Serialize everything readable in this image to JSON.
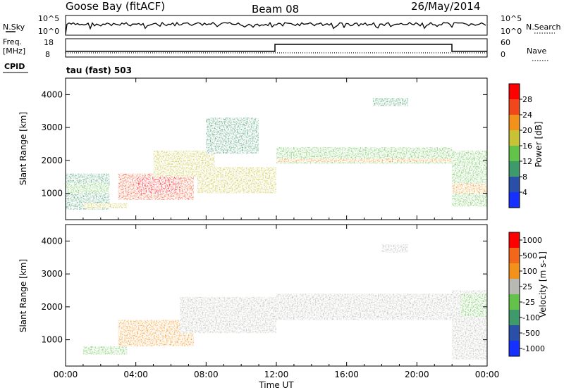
{
  "header": {
    "station": "Goose Bay (fitACF)",
    "beam": "Beam 08",
    "date": "26/May/2014"
  },
  "summary": {
    "nsky_label": "N.Sky",
    "nsky_ticks": [
      "10^5",
      "10^0"
    ],
    "nsearch_label": "N.Search",
    "nsearch_ticks": [
      "10^5",
      "10^0"
    ],
    "freq_label": "Freq.",
    "freq_unit": "[MHz]",
    "freq_ticks": [
      "18",
      "8"
    ],
    "nave_label": "Nave",
    "nave_ticks": [
      "60",
      "0"
    ],
    "cpid_label": "CPID",
    "cpid_value": "tau (fast) 503"
  },
  "colors": {
    "power": [
      "#1530ff",
      "#2a4fa8",
      "#3e9a6b",
      "#63c24a",
      "#c9c235",
      "#f2921a",
      "#f2471a",
      "#ff0000"
    ],
    "velocity": [
      "#1530ff",
      "#2a4fa8",
      "#3e9a6b",
      "#63c24a",
      "#b9b9b4",
      "#f2921a",
      "#f2671a",
      "#ff0000"
    ]
  },
  "chart_data": [
    {
      "type": "heatmap",
      "name": "power",
      "ylabel": "Slant Range [km]",
      "xlabel": "Time UT",
      "xlim": [
        0,
        24
      ],
      "ylim": [
        200,
        4500
      ],
      "xticks": [
        "00:00",
        "04:00",
        "08:00",
        "12:00",
        "16:00",
        "20:00",
        "00:00"
      ],
      "yticks": [
        "1000",
        "2000",
        "3000",
        "4000"
      ],
      "colorbar_label": "Power [dB]",
      "colorbar_ticks": [
        "4",
        "8",
        "12",
        "16",
        "20",
        "24",
        "28"
      ],
      "echo_regions": [
        {
          "t": [
            0.0,
            2.5
          ],
          "range": [
            500,
            1600
          ],
          "level": 2
        },
        {
          "t": [
            0.0,
            2.5
          ],
          "range": [
            1000,
            1300
          ],
          "level": 3
        },
        {
          "t": [
            1.0,
            3.5
          ],
          "range": [
            550,
            700
          ],
          "level": 4
        },
        {
          "t": [
            3.0,
            7.3
          ],
          "range": [
            800,
            1600
          ],
          "level": 6
        },
        {
          "t": [
            4.0,
            6.5
          ],
          "range": [
            1000,
            1500
          ],
          "level": 7
        },
        {
          "t": [
            5.0,
            8.5
          ],
          "range": [
            1500,
            2300
          ],
          "level": 4
        },
        {
          "t": [
            7.5,
            12.0
          ],
          "range": [
            1000,
            1800
          ],
          "level": 4
        },
        {
          "t": [
            8.0,
            11.0
          ],
          "range": [
            2200,
            3300
          ],
          "level": 2
        },
        {
          "t": [
            12.0,
            22.0
          ],
          "range": [
            1900,
            2400
          ],
          "level": 3
        },
        {
          "t": [
            12.0,
            22.0
          ],
          "range": [
            1950,
            2050
          ],
          "level": 5
        },
        {
          "t": [
            17.5,
            19.5
          ],
          "range": [
            3650,
            3900
          ],
          "level": 2
        },
        {
          "t": [
            22.0,
            24.0
          ],
          "range": [
            600,
            2300
          ],
          "level": 3
        },
        {
          "t": [
            22.0,
            24.0
          ],
          "range": [
            1000,
            1300
          ],
          "level": 5
        }
      ]
    },
    {
      "type": "heatmap",
      "name": "velocity",
      "ylabel": "Slant Range [km]",
      "xlabel": "Time UT",
      "xlim": [
        0,
        24
      ],
      "ylim": [
        200,
        4500
      ],
      "xticks": [
        "00:00",
        "04:00",
        "08:00",
        "12:00",
        "16:00",
        "20:00",
        "00:00"
      ],
      "yticks": [
        "1000",
        "2000",
        "3000",
        "4000"
      ],
      "colorbar_label": "Velocity [m s-1]",
      "colorbar_ticks": [
        "1000",
        "500",
        "100",
        "25",
        "-25",
        "-100",
        "-500",
        "-1000"
      ],
      "echo_regions": [
        {
          "t": [
            1.0,
            3.5
          ],
          "range": [
            550,
            800
          ],
          "level": 3
        },
        {
          "t": [
            3.0,
            7.3
          ],
          "range": [
            800,
            1600
          ],
          "level": 5
        },
        {
          "t": [
            6.5,
            12.0
          ],
          "range": [
            1200,
            2300
          ],
          "level": 4
        },
        {
          "t": [
            12.0,
            22.0
          ],
          "range": [
            1600,
            2400
          ],
          "level": 4
        },
        {
          "t": [
            18.0,
            19.5
          ],
          "range": [
            3650,
            3900
          ],
          "level": 4
        },
        {
          "t": [
            22.0,
            24.0
          ],
          "range": [
            400,
            2500
          ],
          "level": 4
        },
        {
          "t": [
            22.5,
            24.0
          ],
          "range": [
            1700,
            2400
          ],
          "level": 3
        }
      ]
    }
  ]
}
